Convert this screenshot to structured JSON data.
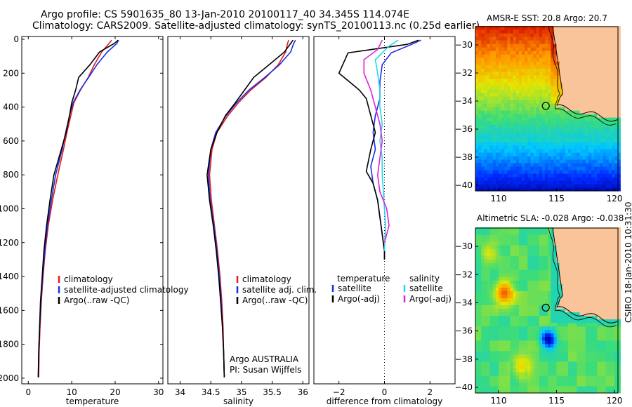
{
  "header": {
    "line1": "Argo profile: CS 5901635_80 13-Jan-2010 20100117_40 34.345S 114.074E",
    "line2": "Climatology: CARS2009. Satellite-adjusted climatology: synTS_20100113.nc (0.25d earlier)"
  },
  "stamp": "CSIRO 18-Jan-2010 10:31:30",
  "colors": {
    "climatology": "#e21b1b",
    "satellite": "#1a2ee6",
    "argo": "#000000",
    "sal_satellite": "#22d8e8",
    "sal_argo": "#e020d8",
    "land": "#f9c49a"
  },
  "chart_data": [
    {
      "type": "line",
      "name": "temperature-profile",
      "xlabel": "temperature",
      "ylabel": "",
      "xlim": [
        -1.5,
        31
      ],
      "ylim": [
        2050,
        0
      ],
      "xticks": [
        0,
        10,
        20,
        30
      ],
      "yticks": [
        0,
        200,
        400,
        600,
        800,
        1000,
        1200,
        1400,
        1600,
        1800,
        2000
      ],
      "legend": {
        "position": "bottom-right",
        "entries": [
          "climatology",
          "satellite-adjusted climatology",
          "Argo(..raw -QC)"
        ]
      },
      "series": [
        {
          "name": "climatology",
          "color_key": "climatology",
          "x": [
            19.2,
            18.6,
            16.9,
            15.2,
            13.8,
            12.0,
            10.5,
            9.8,
            8.9,
            8.1,
            6.8,
            5.6,
            4.6,
            3.9,
            3.4,
            3.0,
            2.7,
            2.5,
            2.4
          ],
          "y": [
            5,
            25,
            75,
            150,
            225,
            300,
            375,
            450,
            550,
            650,
            800,
            950,
            1100,
            1250,
            1400,
            1550,
            1700,
            1850,
            1995
          ]
        },
        {
          "name": "satellite-adjusted climatology",
          "color_key": "satellite",
          "x": [
            20.8,
            20.4,
            18.2,
            15.8,
            13.9,
            11.9,
            10.3,
            9.5,
            8.6,
            7.8,
            6.3,
            5.3,
            4.4,
            3.8,
            3.3,
            2.9,
            2.6,
            2.4,
            2.3
          ],
          "y": [
            5,
            25,
            75,
            150,
            225,
            300,
            375,
            450,
            550,
            650,
            800,
            950,
            1100,
            1250,
            1400,
            1550,
            1700,
            1850,
            1995
          ]
        },
        {
          "name": "Argo(..raw -QC)",
          "color_key": "argo",
          "x": [
            20.7,
            19.8,
            16.4,
            14.2,
            11.6,
            10.9,
            10.0,
            9.5,
            8.7,
            7.6,
            5.9,
            5.0,
            4.2,
            3.6,
            3.2,
            2.8,
            2.6,
            2.4,
            2.3
          ],
          "y": [
            5,
            25,
            75,
            150,
            225,
            300,
            375,
            450,
            550,
            650,
            800,
            950,
            1100,
            1250,
            1400,
            1550,
            1700,
            1850,
            1995
          ]
        }
      ]
    },
    {
      "type": "line",
      "name": "salinity-profile",
      "xlabel": "salinity",
      "ylabel": "",
      "xlim": [
        33.8,
        36.1
      ],
      "ylim": [
        2050,
        0
      ],
      "xticks": [
        34,
        34.5,
        35,
        35.5,
        36
      ],
      "yticks": [],
      "legend": {
        "position": "bottom-right",
        "entries": [
          "climatology",
          "satellite adj. clim.",
          "Argo(..raw -QC)"
        ]
      },
      "annotations": [
        "Argo AUSTRALIA",
        "PI: Susan Wijffels"
      ],
      "series": [
        {
          "name": "climatology",
          "color_key": "climatology",
          "x": [
            35.77,
            35.75,
            35.72,
            35.6,
            35.4,
            35.15,
            34.95,
            34.78,
            34.6,
            34.52,
            34.48,
            34.51,
            34.56,
            34.61,
            34.65,
            34.68,
            34.7,
            34.71,
            34.72
          ],
          "y": [
            5,
            25,
            75,
            150,
            225,
            300,
            375,
            450,
            550,
            650,
            800,
            950,
            1100,
            1250,
            1400,
            1550,
            1700,
            1850,
            1995
          ]
        },
        {
          "name": "satellite adj. clim.",
          "color_key": "satellite",
          "x": [
            35.88,
            35.85,
            35.8,
            35.62,
            35.38,
            35.12,
            34.92,
            34.75,
            34.58,
            34.5,
            34.46,
            34.49,
            34.55,
            34.6,
            34.64,
            34.67,
            34.69,
            34.71,
            34.72
          ],
          "y": [
            5,
            25,
            75,
            150,
            225,
            300,
            375,
            450,
            550,
            650,
            800,
            950,
            1100,
            1250,
            1400,
            1550,
            1700,
            1850,
            1995
          ]
        },
        {
          "name": "Argo(..raw -QC)",
          "color_key": "argo",
          "x": [
            35.84,
            35.8,
            35.7,
            35.45,
            35.2,
            35.05,
            34.9,
            34.74,
            34.6,
            34.5,
            34.44,
            34.48,
            34.54,
            34.59,
            34.63,
            34.66,
            34.69,
            34.71,
            34.72
          ],
          "y": [
            5,
            25,
            75,
            150,
            225,
            300,
            375,
            450,
            550,
            650,
            800,
            950,
            1100,
            1250,
            1400,
            1550,
            1700,
            1850,
            1995
          ]
        }
      ]
    },
    {
      "type": "line",
      "name": "difference-profile",
      "xlabel": "difference from climatology",
      "ylabel": "",
      "xlim": [
        -3.1,
        3.1
      ],
      "ylim": [
        2050,
        0
      ],
      "xticks": [
        -2,
        0,
        2
      ],
      "yticks": [],
      "zero_line": 0,
      "legend": {
        "position": "bottom",
        "groups": [
          {
            "title": "temperature",
            "entries": [
              "satellite",
              "Argo(-adj)"
            ]
          },
          {
            "title": "salinity",
            "entries": [
              "satellite",
              "Argo(-adj)"
            ]
          }
        ]
      },
      "series": [
        {
          "name": "temperature satellite",
          "color_key": "satellite",
          "x": [
            1.6,
            1.2,
            0.3,
            -0.1,
            -0.2,
            -0.2,
            -0.4,
            -0.5,
            -0.4,
            -0.6,
            -0.5,
            -0.3,
            -0.2,
            -0.1,
            0.0,
            0.0
          ],
          "y": [
            5,
            30,
            80,
            150,
            250,
            350,
            450,
            550,
            650,
            750,
            850,
            950,
            1050,
            1150,
            1250,
            1300
          ]
        },
        {
          "name": "temperature Argo(-adj)",
          "color_key": "argo",
          "x": [
            1.5,
            1.0,
            -1.6,
            -2.0,
            -1.1,
            -0.8,
            -0.6,
            -0.4,
            -0.6,
            -0.8,
            -0.5,
            -0.3,
            -0.2,
            -0.1,
            0.0,
            0.0
          ],
          "y": [
            5,
            30,
            80,
            200,
            300,
            350,
            450,
            550,
            650,
            780,
            850,
            950,
            1050,
            1150,
            1250,
            1300
          ]
        },
        {
          "name": "salinity satellite",
          "color_key": "sal_satellite",
          "x": [
            0.6,
            0.2,
            -0.4,
            -0.3,
            -0.2,
            -0.2,
            -0.1,
            -0.2,
            -0.1,
            -0.1,
            -0.05,
            0.0,
            0.05,
            0.0
          ],
          "y": [
            5,
            40,
            120,
            200,
            300,
            400,
            500,
            600,
            700,
            800,
            900,
            1000,
            1100,
            1250
          ]
        },
        {
          "name": "salinity Argo(-adj)",
          "color_key": "sal_argo",
          "x": [
            -0.1,
            -0.3,
            -0.9,
            -0.9,
            -0.6,
            -0.4,
            -0.2,
            -0.1,
            -0.2,
            -0.3,
            -0.2,
            0.1,
            0.2,
            0.0
          ],
          "y": [
            5,
            60,
            120,
            200,
            300,
            400,
            500,
            600,
            700,
            800,
            900,
            1000,
            1100,
            1200
          ]
        }
      ]
    },
    {
      "type": "heatmap",
      "name": "sst-map",
      "title": "AMSR-E SST: 20.8 Argo: 20.7",
      "xlim": [
        108,
        120.3
      ],
      "ylim": [
        -40.4,
        -28.7
      ],
      "xticks": [
        110,
        115,
        120
      ],
      "yticks": [
        -30,
        -32,
        -34,
        -36,
        -38,
        -40
      ],
      "marker": {
        "lon": 114.074,
        "lat": -34.345
      }
    },
    {
      "type": "heatmap",
      "name": "sla-map",
      "title": "Altimetric SLA: -0.028 Argo: -0.038",
      "xlim": [
        108,
        120.3
      ],
      "ylim": [
        -40.4,
        -28.7
      ],
      "xticks": [
        110,
        115,
        120
      ],
      "yticks": [
        -30,
        -32,
        -34,
        -36,
        -38,
        -40
      ],
      "marker": {
        "lon": 114.074,
        "lat": -34.345
      }
    }
  ]
}
